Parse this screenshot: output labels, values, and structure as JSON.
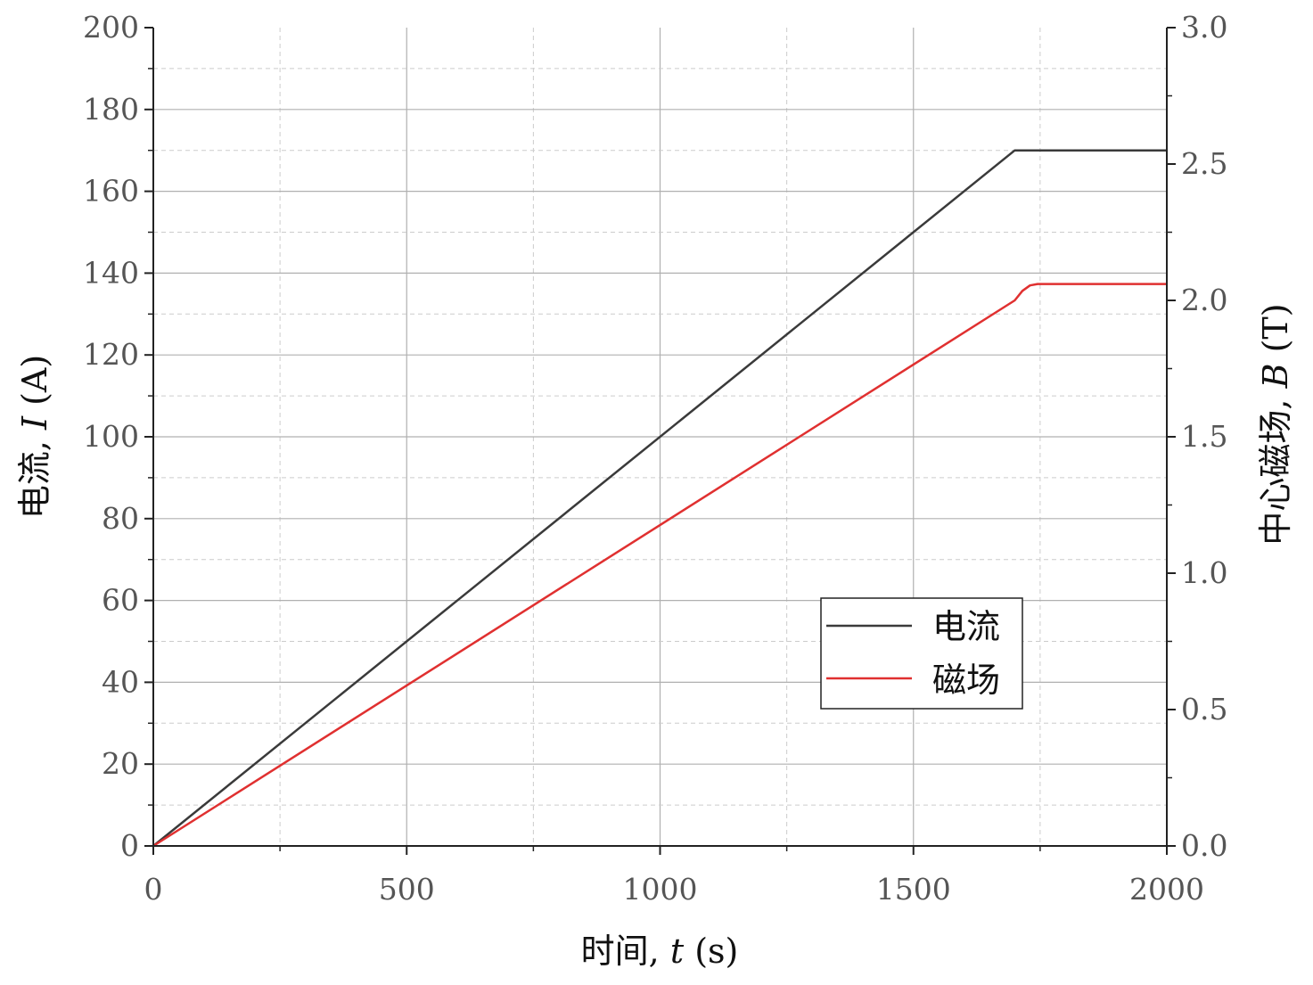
{
  "chart_data": {
    "type": "line",
    "xlabel": {
      "prefix": "时间, ",
      "var": "t",
      "unit": " (s)"
    },
    "ylabel_left": {
      "prefix": "电流, ",
      "var": "I",
      "unit": " (A)"
    },
    "ylabel_right": {
      "prefix": "中心磁场, ",
      "var": "B",
      "unit": " (T)"
    },
    "xlim": [
      0,
      2000
    ],
    "ylim_left": [
      0,
      200
    ],
    "ylim_right": [
      0,
      3.0
    ],
    "x_ticks": [
      "0",
      "500",
      "1000",
      "1500",
      "2000"
    ],
    "y_left_ticks": [
      "0",
      "20",
      "40",
      "60",
      "80",
      "100",
      "120",
      "140",
      "160",
      "180",
      "200"
    ],
    "y_right_ticks": [
      "0.0",
      "0.5",
      "1.0",
      "1.5",
      "2.0",
      "2.5",
      "3.0"
    ],
    "grid": true,
    "legend_position": "lower-right",
    "series": [
      {
        "name": "电流",
        "axis": "left",
        "color": "#3a3a3a",
        "x": [
          0,
          1700,
          2000
        ],
        "y": [
          0,
          170,
          170
        ]
      },
      {
        "name": "磁场",
        "axis": "right",
        "color": "#e03030",
        "x": [
          0,
          1700,
          1715,
          1730,
          1745,
          2000
        ],
        "y": [
          0,
          2.0,
          2.035,
          2.055,
          2.06,
          2.06
        ]
      }
    ]
  }
}
